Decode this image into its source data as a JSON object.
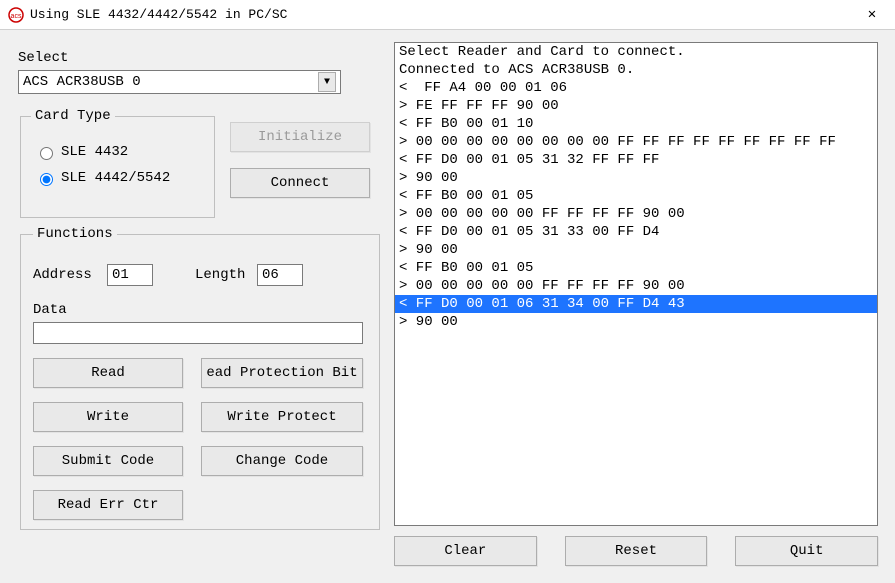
{
  "window": {
    "title": "Using SLE 4432/4442/5542 in PC/SC"
  },
  "icons": {
    "close": "✕",
    "combo_arrow": "▼"
  },
  "select": {
    "label": "Select",
    "value": "ACS ACR38USB 0"
  },
  "card_type": {
    "legend": "Card Type",
    "opt1": "SLE 4432",
    "opt2": "SLE 4442/5542",
    "selected": "opt2"
  },
  "buttons": {
    "initialize": "Initialize",
    "connect": "Connect",
    "read": "Read",
    "read_prot": "ead Protection Bit",
    "write": "Write",
    "write_prot": "Write Protect",
    "submit": "Submit Code",
    "change": "Change Code",
    "read_err": "Read Err Ctr",
    "clear": "Clear",
    "reset": "Reset",
    "quit": "Quit"
  },
  "functions": {
    "legend": "Functions",
    "address_label": "Address",
    "address_value": "01",
    "length_label": "Length",
    "length_value": "06",
    "data_label": "Data",
    "data_value": ""
  },
  "log": {
    "selected_index": 13,
    "lines": [
      "Select Reader and Card to connect.",
      "Connected to ACS ACR38USB 0.",
      "<  FF A4 00 00 01 06",
      "> FE FF FF FF 90 00",
      "< FF B0 00 01 10",
      "> 00 00 00 00 00 00 00 00 FF FF FF FF FF FF FF FF FF",
      "< FF D0 00 01 05 31 32 FF FF FF",
      "> 90 00",
      "< FF B0 00 01 05",
      "> 00 00 00 00 00 FF FF FF FF 90 00",
      "< FF D0 00 01 05 31 33 00 FF D4",
      "> 90 00",
      "< FF B0 00 01 05",
      "> 00 00 00 00 00 FF FF FF FF 90 00",
      "< FF D0 00 01 06 31 34 00 FF D4 43",
      "> 90 00"
    ]
  },
  "colors": {
    "selection_bg": "#1e74ff",
    "selection_fg": "#ffffff",
    "panel_bg": "#f0f0f0",
    "border": "#7a7a7a"
  }
}
